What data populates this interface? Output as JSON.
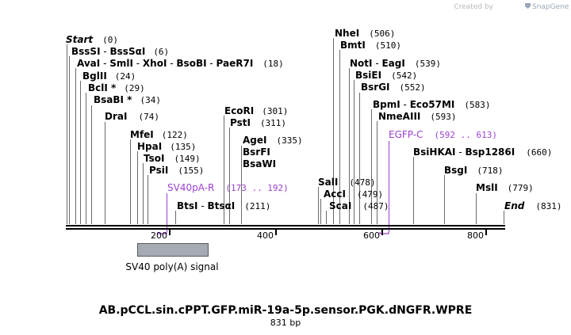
{
  "credit": {
    "prefix": "Created by",
    "brand": "SnapGene",
    "icon": "snapgene-logo-icon"
  },
  "sites": {
    "start": {
      "name": "Start",
      "pos": "(0)"
    },
    "bsssi": {
      "n1": "BssSI",
      "n2": "BssSαI",
      "pos": "(6)"
    },
    "avai": {
      "n1": "AvaI",
      "n2": "SmlI",
      "n3": "XhoI",
      "n4": "BsoBI",
      "n5": "PaeR7I",
      "pos": "(18)"
    },
    "bglii": {
      "name": "BglII",
      "pos": "(24)"
    },
    "bcli": {
      "name": "BclI *",
      "pos": "(29)"
    },
    "bsabi": {
      "name": "BsaBI *",
      "pos": "(34)"
    },
    "drai": {
      "name": "DraI",
      "pos": "(74)"
    },
    "mfei": {
      "name": "MfeI",
      "pos": "(122)"
    },
    "hpai": {
      "name": "HpaI",
      "pos": "(135)"
    },
    "tsoi": {
      "name": "TsoI",
      "pos": "(149)"
    },
    "psii": {
      "name": "PsiI",
      "pos": "(155)"
    },
    "btsi": {
      "n1": "BtsI",
      "n2": "BtsαI",
      "pos": "(211)"
    },
    "ecori": {
      "name": "EcoRI",
      "pos": "(301)"
    },
    "psti": {
      "name": "PstI",
      "pos": "(311)"
    },
    "agei": {
      "name": "AgeI",
      "pos": "(335)"
    },
    "bsrfi": {
      "name": "BsrFI"
    },
    "bsawi": {
      "name": "BsaWI"
    },
    "nhei": {
      "name": "NheI",
      "pos": "(506)"
    },
    "bmti": {
      "name": "BmtI",
      "pos": "(510)"
    },
    "noti": {
      "n1": "NotI",
      "n2": "EagI",
      "pos": "(539)"
    },
    "bsiei": {
      "name": "BsiEI",
      "pos": "(542)"
    },
    "bsrgi": {
      "name": "BsrGI",
      "pos": "(552)"
    },
    "bpmi": {
      "n1": "BpmI",
      "n2": "Eco57MI",
      "pos": "(583)"
    },
    "nmeaiii": {
      "name": "NmeAIII",
      "pos": "(593)"
    },
    "sali": {
      "name": "SalI",
      "pos": "(478)"
    },
    "acci": {
      "name": "AccI",
      "pos": "(479)"
    },
    "scai": {
      "name": "ScaI",
      "pos": "(487)"
    },
    "bsihkai": {
      "n1": "BsiHKAI",
      "n2": "Bsp1286I",
      "pos": "(660)"
    },
    "bsgi": {
      "name": "BsgI",
      "pos": "(718)"
    },
    "msli": {
      "name": "MslI",
      "pos": "(779)"
    },
    "end": {
      "name": "End",
      "pos": "(831)"
    }
  },
  "features": {
    "sv40pa": {
      "name": "SV40pA-R",
      "range": "(173 .. 192)"
    },
    "egfp": {
      "name": "EGFP-C",
      "range": "(592 .. 613)"
    },
    "sv40sig": {
      "name": "SV40 poly(A) signal"
    }
  },
  "axis": {
    "ticks": [
      "200",
      "400",
      "600",
      "800"
    ]
  },
  "colors": {
    "feature": "#9b3fd0",
    "box_fill": "#a6aab2",
    "box_stroke": "#555a63"
  },
  "title": "AB.pCCL.sin.cPPT.GFP.miR-19a-5p.sensor.PGK.dNGFR.WPRE",
  "length": "831 bp"
}
